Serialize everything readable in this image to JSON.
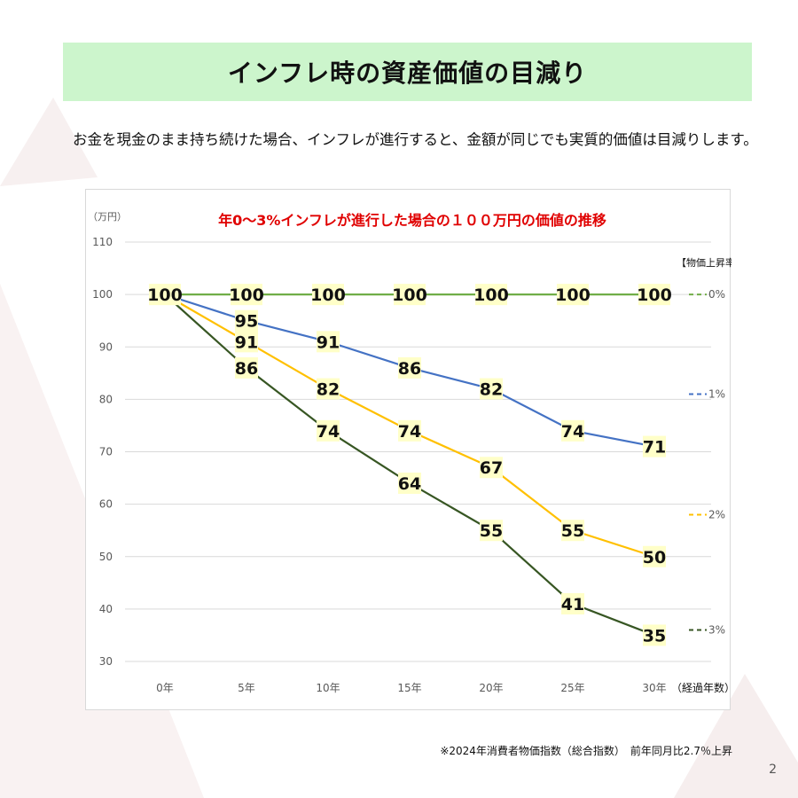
{
  "slide": {
    "title": "インフレ時の資産価値の目減り",
    "subtitle": "お金を現金のまま持ち続けた場合、インフレが進行すると、金額が同じでも実質的価値は目減りします。",
    "footnote": "※2024年消費者物価指数（総合指数）　前年同月比2.7％上昇",
    "page_number": "2"
  },
  "chart_data": {
    "type": "line",
    "title": "年0〜3%インフレが進行した場合の１００万円の価値の推移",
    "ylabel": "（万円）",
    "xlabel": "（経過年数）",
    "legend_title": "【物価上昇率/年】",
    "legend_position": "right",
    "categories": [
      "0年",
      "5年",
      "10年",
      "15年",
      "20年",
      "25年",
      "30年"
    ],
    "ylim": [
      30,
      110
    ],
    "yticks": [
      30,
      40,
      50,
      60,
      70,
      80,
      90,
      100,
      110
    ],
    "grid": true,
    "series": [
      {
        "name": "0%",
        "color": "#70ad47",
        "values": [
          100,
          100,
          100,
          100,
          100,
          100,
          100
        ]
      },
      {
        "name": "1%",
        "color": "#4472c4",
        "values": [
          100,
          95,
          91,
          86,
          82,
          74,
          71
        ]
      },
      {
        "name": "2%",
        "color": "#ffc000",
        "values": [
          100,
          91,
          82,
          74,
          67,
          55,
          50
        ]
      },
      {
        "name": "3%",
        "color": "#375623",
        "values": [
          100,
          86,
          74,
          64,
          55,
          41,
          35
        ]
      }
    ],
    "label_bg_color": "#ffffc8",
    "title_color": "#e00000"
  }
}
